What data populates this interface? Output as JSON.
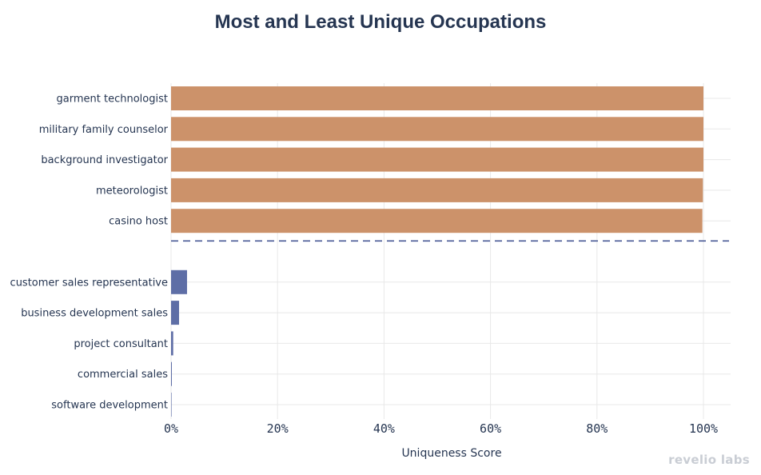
{
  "title": "Most and Least Unique Occupations",
  "watermark": "revelio labs",
  "chart_data": {
    "type": "bar",
    "orientation": "horizontal",
    "title": "Most and Least Unique Occupations",
    "xlabel": "Uniqueness Score",
    "ylabel": "",
    "xlim": [
      0,
      100
    ],
    "x_ticks": [
      "0%",
      "20%",
      "40%",
      "60%",
      "80%",
      "100%"
    ],
    "x_tick_values": [
      0,
      20,
      40,
      60,
      80,
      100
    ],
    "grid": true,
    "divider": "dashed line between most and least unique groups",
    "series": [
      {
        "group": "most unique",
        "color": "#cc926a",
        "categories": [
          "garment technologist",
          "military family counselor",
          "background investigator",
          "meteorologist",
          "casino host"
        ],
        "values": [
          100,
          100,
          100,
          99.9,
          99.8
        ]
      },
      {
        "group": "least unique",
        "color": "#5e6ea6",
        "categories": [
          "customer sales representative",
          "business development sales",
          "project consultant",
          "commercial sales",
          "software development"
        ],
        "values": [
          3,
          1.5,
          0.4,
          0.15,
          0.05
        ]
      }
    ]
  },
  "colors": {
    "most_unique": "#cc926a",
    "least_unique": "#5e6ea6",
    "divider": "#4a5a96",
    "grid": "#e8e8e8",
    "text": "#253551"
  }
}
